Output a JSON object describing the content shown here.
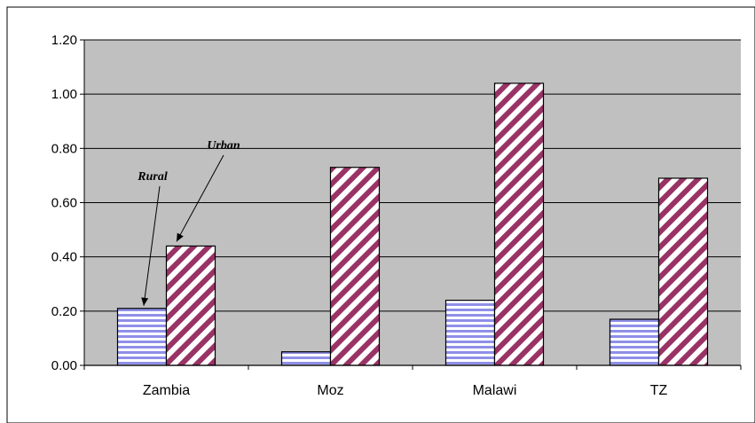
{
  "colors": {
    "plot_background": "#c0c0c0",
    "rural_fill": "#8f8fe8",
    "rural_stripe_bg": "#ffffff",
    "urban_stripe": "#993366",
    "urban_stripe_bg": "#ffffff"
  },
  "chart_data": {
    "type": "bar",
    "title": "",
    "xlabel": "",
    "ylabel": "",
    "categories": [
      "Zambia",
      "Moz",
      "Malawi",
      "TZ"
    ],
    "series": [
      {
        "name": "Rural",
        "values": [
          0.21,
          0.05,
          0.24,
          0.17
        ]
      },
      {
        "name": "Urban",
        "values": [
          0.44,
          0.73,
          1.04,
          0.69
        ]
      }
    ],
    "ylim": [
      0,
      1.2
    ],
    "yticks": [
      "0.00",
      "0.20",
      "0.40",
      "0.60",
      "0.80",
      "1.00",
      "1.20"
    ],
    "grid": true,
    "legend": "none",
    "annotations": [
      {
        "text": "Rural",
        "points_to": "Zambia Rural bar"
      },
      {
        "text": "Urban",
        "points_to": "Zambia Urban bar"
      }
    ]
  }
}
